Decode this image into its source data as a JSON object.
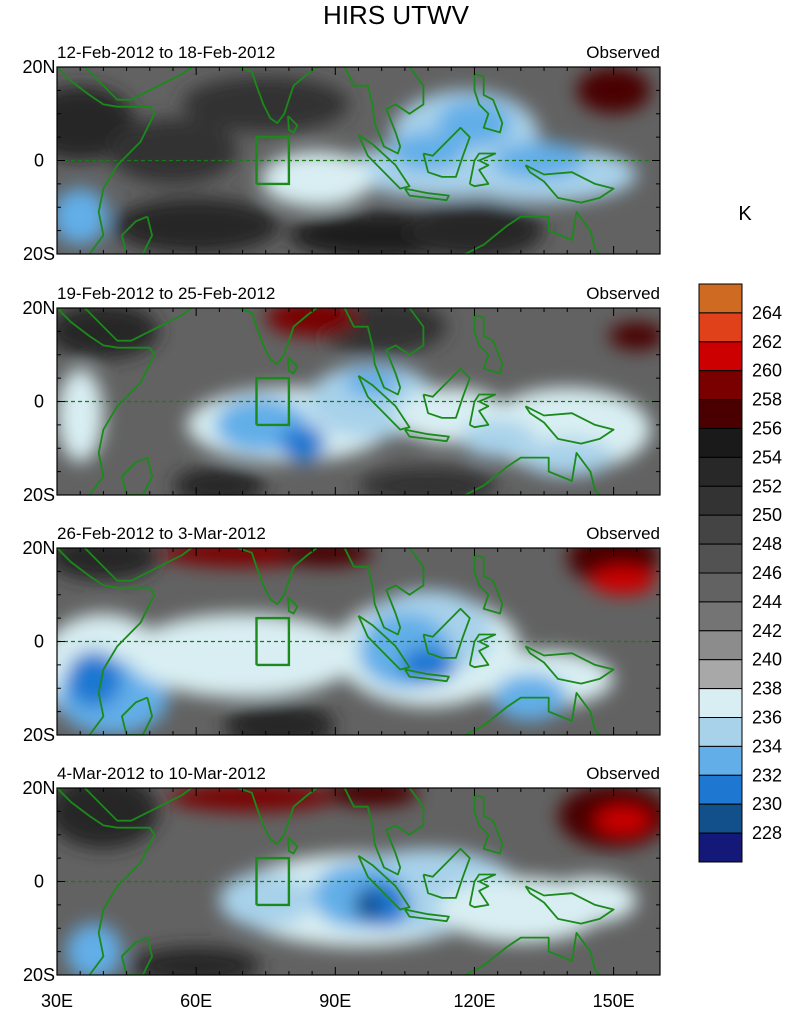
{
  "chart_data": {
    "type": "heatmap",
    "title": "HIRS UTWV",
    "units": "K",
    "y_ticks": [
      "20N",
      "0",
      "20S"
    ],
    "x_ticks": [
      "30E",
      "60E",
      "90E",
      "120E",
      "150E"
    ],
    "x_tick_values": [
      30,
      60,
      90,
      120,
      150
    ],
    "xlim": [
      30,
      160
    ],
    "ylim": [
      -20,
      20
    ],
    "colorbar": {
      "levels": [
        "264",
        "262",
        "260",
        "258",
        "256",
        "254",
        "252",
        "250",
        "248",
        "246",
        "244",
        "242",
        "240",
        "238",
        "236",
        "234",
        "232",
        "230",
        "228"
      ],
      "colors": [
        "#cf6a22",
        "#e0401a",
        "#cc0000",
        "#7a0000",
        "#4a0000",
        "#1a1a1a",
        "#282828",
        "#333333",
        "#444444",
        "#525252",
        "#626262",
        "#747474",
        "#8c8c8c",
        "#a8a8a8",
        "#d8eef2",
        "#a8d2ea",
        "#62aee8",
        "#1e78d2",
        "#12508c",
        "#141878"
      ]
    },
    "panels": [
      {
        "period": "12-Feb-2012 to 18-Feb-2012",
        "label": "Observed"
      },
      {
        "period": "19-Feb-2012 to 25-Feb-2012",
        "label": "Observed"
      },
      {
        "period": "26-Feb-2012 to 3-Mar-2012",
        "label": "Observed"
      },
      {
        "period": "4-Mar-2012 to 10-Mar-2012",
        "label": "Observed"
      }
    ]
  }
}
